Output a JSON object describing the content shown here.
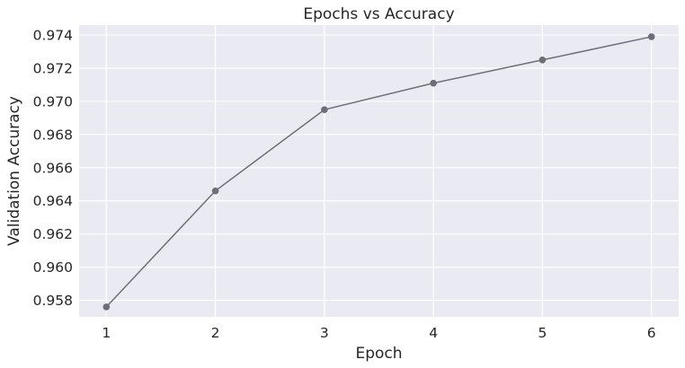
{
  "chart_data": {
    "type": "line",
    "title": "Epochs vs Accuracy",
    "xlabel": "Epoch",
    "ylabel": "Validation Accuracy",
    "x": [
      1,
      2,
      3,
      4,
      5,
      6
    ],
    "series": [
      {
        "values": [
          0.9576,
          0.9646,
          0.9695,
          0.9711,
          0.9725,
          0.9739
        ],
        "color": "#6e6e7a"
      }
    ],
    "xticks": [
      "1",
      "2",
      "3",
      "4",
      "5",
      "6"
    ],
    "yticks": [
      "0.958",
      "0.960",
      "0.962",
      "0.964",
      "0.966",
      "0.968",
      "0.970",
      "0.972",
      "0.974"
    ],
    "xlim": [
      0.75,
      6.25
    ],
    "ylim": [
      0.957,
      0.9746
    ],
    "grid": true,
    "style": {
      "plot_background": "#eaeaf2",
      "grid_color": "#ffffff",
      "text_color": "#262626",
      "marker": "circle"
    }
  }
}
